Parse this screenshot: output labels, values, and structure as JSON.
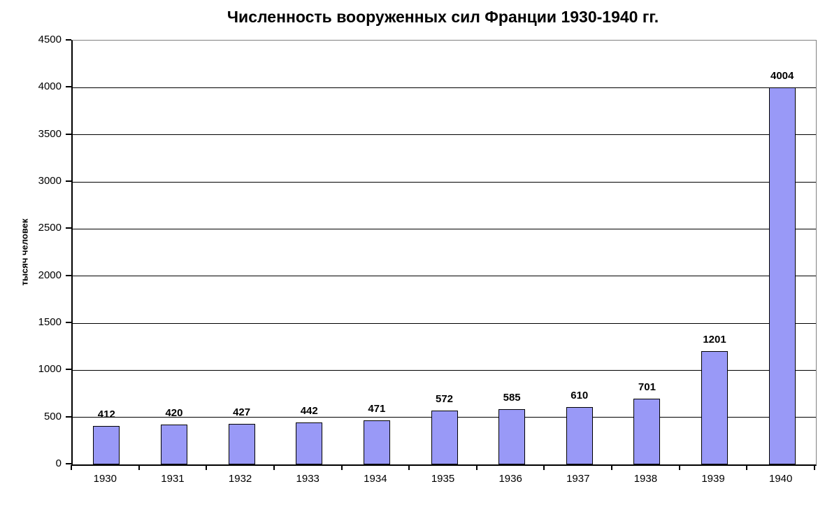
{
  "chart_data": {
    "type": "bar",
    "title": "Численность вооруженных сил Франции 1930-1940 гг.",
    "ylabel": "тысяч человек",
    "xlabel": "",
    "categories": [
      "1930",
      "1931",
      "1932",
      "1933",
      "1934",
      "1935",
      "1936",
      "1937",
      "1938",
      "1939",
      "1940"
    ],
    "values": [
      412,
      420,
      427,
      442,
      471,
      572,
      585,
      610,
      701,
      1201,
      4004
    ],
    "ylim": [
      0,
      4500
    ],
    "yticks": [
      0,
      500,
      1000,
      1500,
      2000,
      2500,
      3000,
      3500,
      4000,
      4500
    ],
    "grid": true,
    "legend_position": "none",
    "data_labels": true,
    "colors": {
      "bar_fill": "#9999F7",
      "bar_border": "#000000",
      "gridline": "#000000",
      "axis": "#000000",
      "plot_frame": "#808080",
      "background": "#FFFFFF",
      "text": "#000000"
    }
  }
}
